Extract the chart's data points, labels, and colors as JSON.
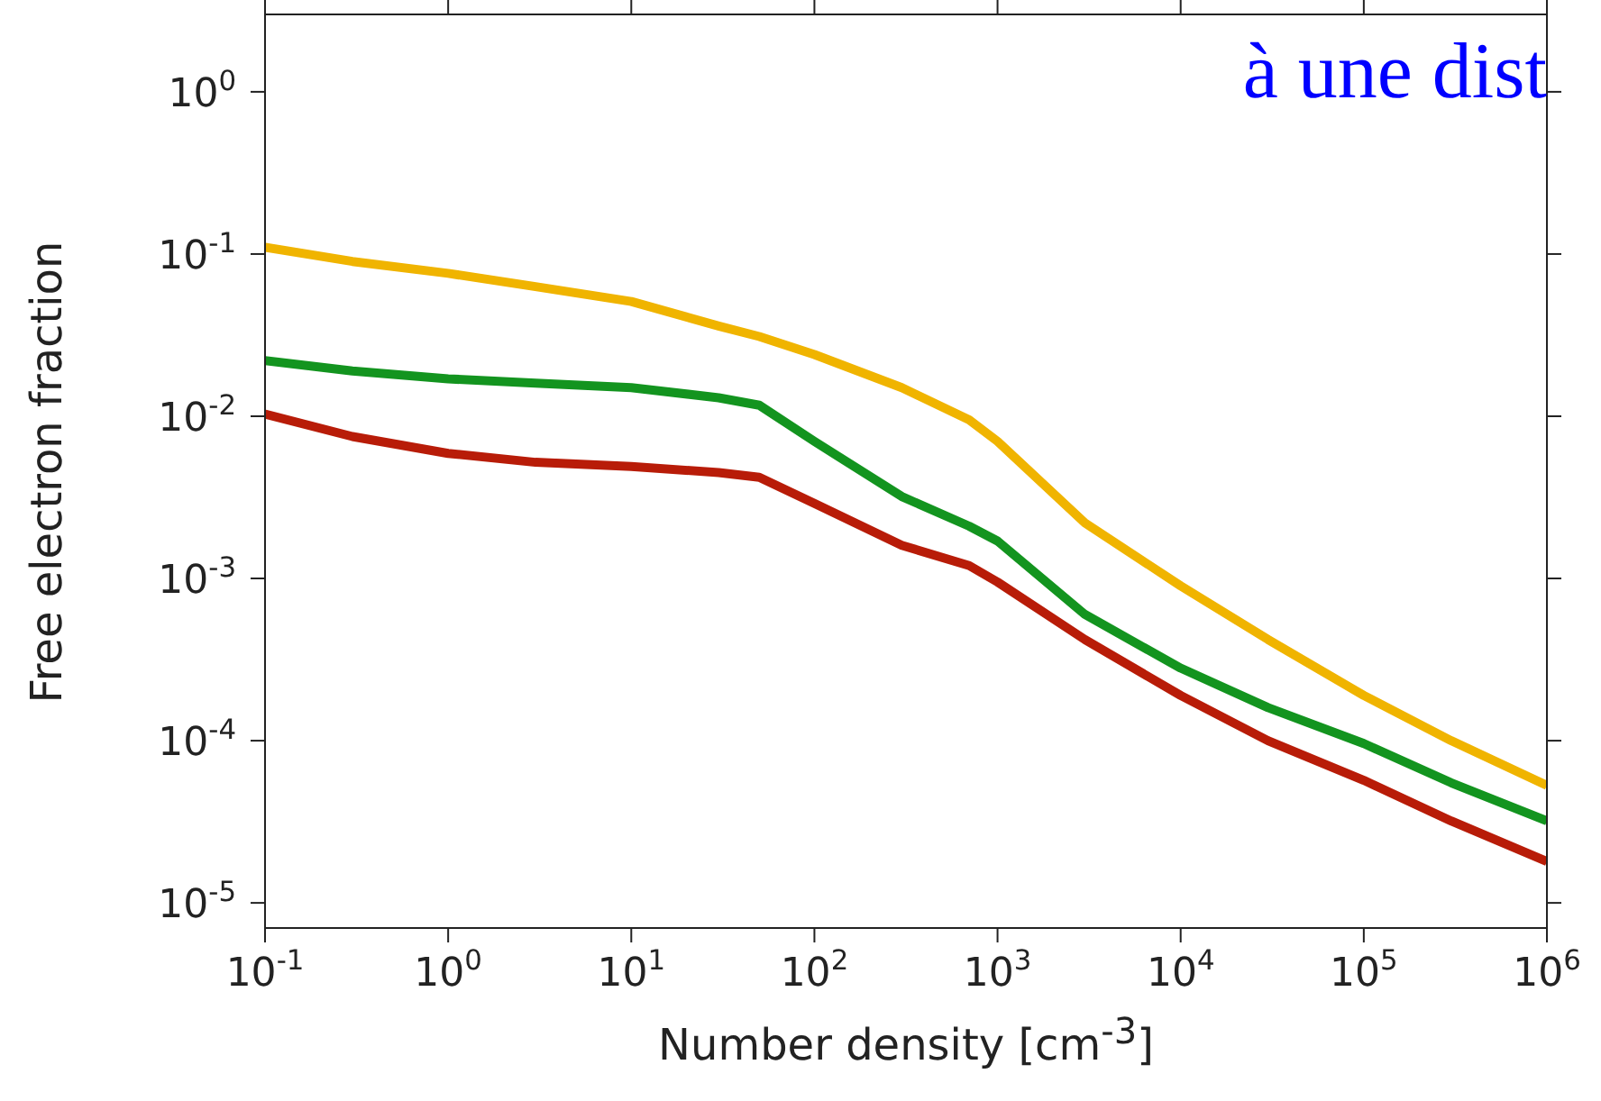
{
  "chart_data": {
    "type": "line",
    "xlabel": "Number density [cm$^{-3}$]",
    "ylabel": "Free electron fraction",
    "log": "xy",
    "marker": "none",
    "xlim": [
      0.1,
      1000000
    ],
    "ylim": [
      7e-06,
      3
    ],
    "xticks": [
      {
        "value": 0.1,
        "label": "10$^{-1}$"
      },
      {
        "value": 1,
        "label": "10$^{0}$"
      },
      {
        "value": 10,
        "label": "10$^{1}$"
      },
      {
        "value": 100,
        "label": "10$^{2}$"
      },
      {
        "value": 1000,
        "label": "10$^{3}$"
      },
      {
        "value": 10000,
        "label": "10$^{4}$"
      },
      {
        "value": 100000,
        "label": "10$^{5}$"
      },
      {
        "value": 1000000,
        "label": "10$^{6}$"
      }
    ],
    "yticks": [
      {
        "value": 1e-05,
        "label": "10$^{-5}$"
      },
      {
        "value": 0.0001,
        "label": "10$^{-4}$"
      },
      {
        "value": 0.001,
        "label": "10$^{-3}$"
      },
      {
        "value": 0.01,
        "label": "10$^{-2}$"
      },
      {
        "value": 0.1,
        "label": "10$^{-1}$"
      },
      {
        "value": 1,
        "label": "10$^{0}$"
      }
    ],
    "x": [
      0.1,
      0.3,
      1,
      3,
      10,
      30,
      50,
      100,
      300,
      700,
      1000,
      3000,
      10000,
      30000,
      100000,
      300000,
      1000000
    ],
    "series": [
      {
        "color": "#f0b400",
        "values": [
          0.11,
          0.09,
          0.076,
          0.063,
          0.051,
          0.036,
          0.031,
          0.024,
          0.015,
          0.0095,
          0.007,
          0.0022,
          0.0009,
          0.00042,
          0.00019,
          0.0001,
          5.3e-05
        ]
      },
      {
        "color": "#13941f",
        "values": [
          0.022,
          0.019,
          0.017,
          0.016,
          0.015,
          0.013,
          0.0117,
          0.007,
          0.0032,
          0.0021,
          0.0017,
          0.0006,
          0.00028,
          0.00016,
          9.6e-05,
          5.5e-05,
          3.2e-05
        ]
      },
      {
        "color": "#b81c08",
        "values": [
          0.0103,
          0.0075,
          0.0059,
          0.0052,
          0.0049,
          0.0045,
          0.0042,
          0.0029,
          0.0016,
          0.0012,
          0.00095,
          0.00042,
          0.00019,
          0.0001,
          5.7e-05,
          3.2e-05,
          1.8e-05
        ]
      }
    ],
    "annotations": [
      "à une dist"
    ]
  }
}
